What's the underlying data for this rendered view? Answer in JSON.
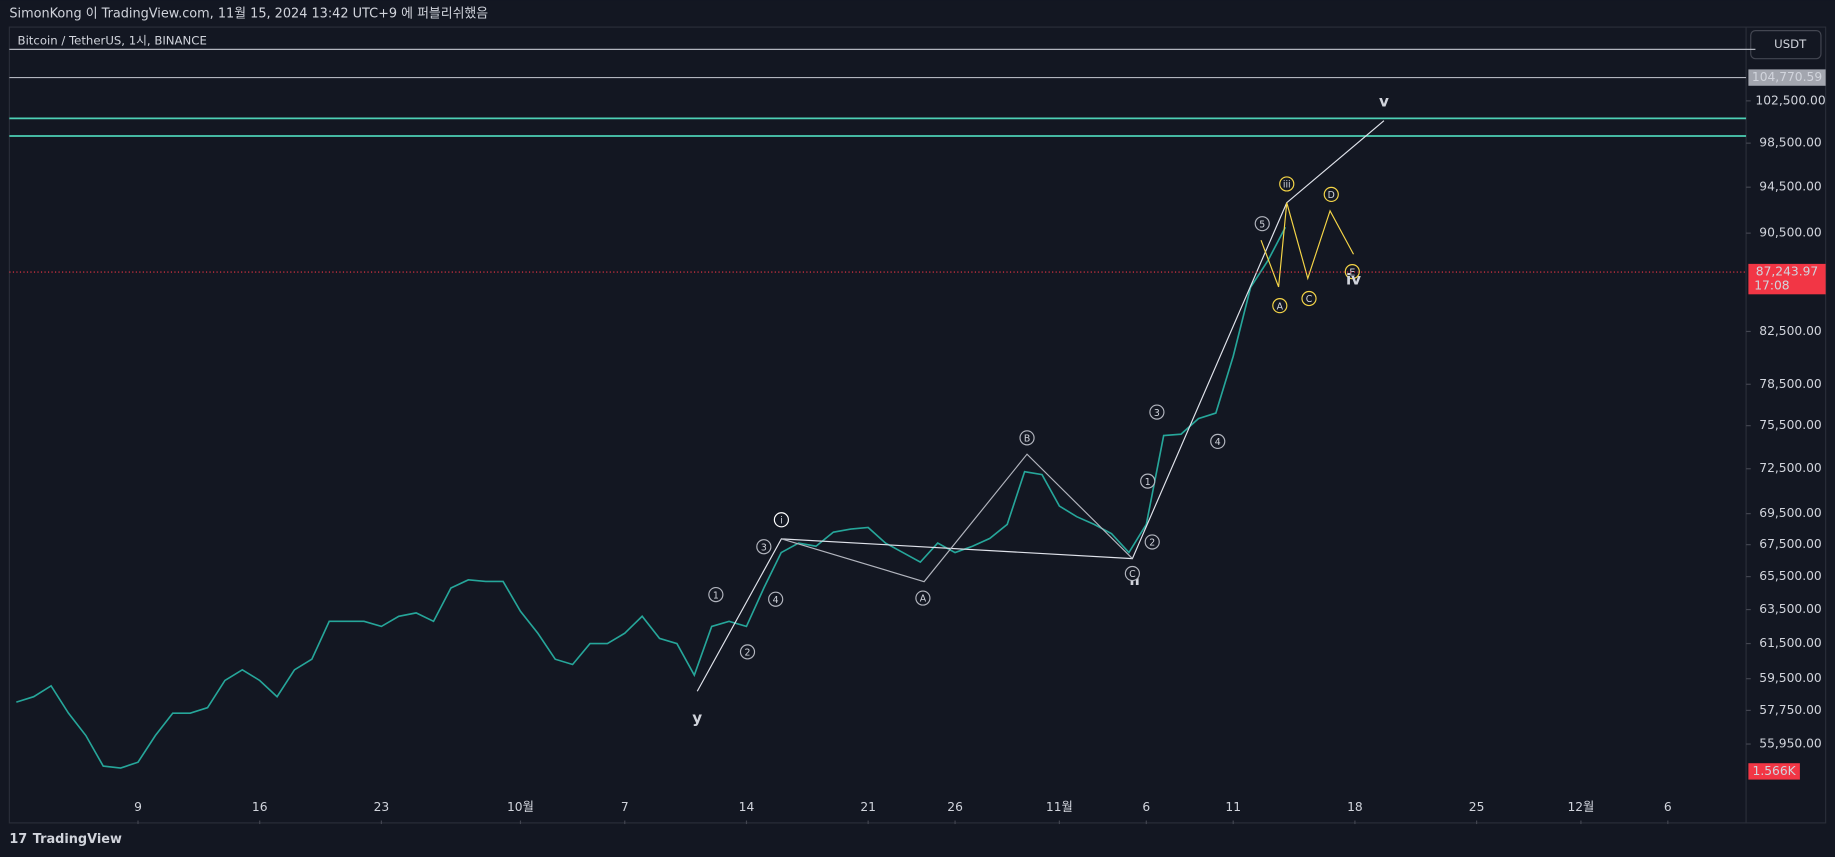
{
  "header": {
    "text": "SimonKong 이 TradingView.com, 11월 15, 2024 13:42 UTC+9 에 퍼블리쉬했음"
  },
  "footer": {
    "brand": "TradingView"
  },
  "chart_data": {
    "type": "line",
    "symbol": "Bitcoin / TetherUS, 1시, BINANCE",
    "currency": "USDT",
    "log_scale": true,
    "color": "#26a69a",
    "x": [
      2,
      3,
      4,
      5,
      6,
      7,
      8,
      9,
      10,
      11,
      12,
      13,
      14,
      15,
      16,
      17,
      18,
      19,
      20,
      21,
      22,
      23,
      24,
      25,
      26,
      27,
      28,
      29,
      30,
      31,
      32,
      33,
      34,
      35,
      36,
      37,
      38,
      39,
      40,
      41,
      42,
      43,
      44,
      45,
      46,
      47,
      48,
      49,
      50,
      51,
      52,
      53,
      54,
      55,
      56,
      57,
      58,
      59,
      60,
      61,
      62,
      63,
      64,
      65,
      66,
      67,
      68,
      69,
      70,
      71,
      72,
      73,
      74,
      75
    ],
    "values": [
      58200,
      58500,
      59100,
      57600,
      56400,
      54800,
      54700,
      55000,
      56400,
      57600,
      57600,
      57900,
      59400,
      60000,
      59400,
      58500,
      60000,
      60600,
      62800,
      62800,
      62800,
      62500,
      63100,
      63300,
      62800,
      64800,
      65300,
      65200,
      65200,
      63400,
      62100,
      60600,
      60300,
      61500,
      61500,
      62100,
      63100,
      61800,
      61500,
      59700,
      62500,
      62800,
      62500,
      64800,
      67000,
      67600,
      67400,
      68300,
      68500,
      68600,
      67600,
      67000,
      66400,
      67600,
      67000,
      67400,
      67900,
      68800,
      72300,
      72100,
      70000,
      69300,
      68800,
      68200,
      67000,
      68800,
      74800,
      74900,
      76000,
      76400,
      80600,
      86000,
      88200,
      91000
    ],
    "xlim": [
      1.6,
      101.5
    ],
    "xticks": [
      9,
      16,
      23,
      {
        "value": 31,
        "label": "10월"
      },
      {
        "value": 37,
        "label": "7"
      },
      {
        "value": 44,
        "label": "14"
      },
      {
        "value": 51,
        "label": "21"
      },
      {
        "value": 56,
        "label": "26"
      },
      {
        "value": 62,
        "label": "11월"
      },
      {
        "value": 67,
        "label": "6"
      },
      {
        "value": 72,
        "label": "11"
      },
      {
        "value": 79,
        "label": "18"
      },
      {
        "value": 86,
        "label": "25"
      },
      {
        "value": 92,
        "label": "12월"
      },
      {
        "value": 97,
        "label": "6"
      }
    ],
    "ylim": [
      52120,
      109870
    ],
    "yticks": [
      {
        "value": 102500,
        "label": "102,500.00"
      },
      {
        "value": 98500,
        "label": "98,500.00"
      },
      {
        "value": 94500,
        "label": "94,500.00"
      },
      {
        "value": 90500,
        "label": "90,500.00"
      },
      {
        "value": 82500,
        "label": "82,500.00"
      },
      {
        "value": 78500,
        "label": "78,500.00"
      },
      {
        "value": 75500,
        "label": "75,500.00"
      },
      {
        "value": 72500,
        "label": "72,500.00"
      },
      {
        "value": 69500,
        "label": "69,500.00"
      },
      {
        "value": 67500,
        "label": "67,500.00"
      },
      {
        "value": 65500,
        "label": "65,500.00"
      },
      {
        "value": 63500,
        "label": "63,500.00"
      },
      {
        "value": 61500,
        "label": "61,500.00"
      },
      {
        "value": 59500,
        "label": "59,500.00"
      },
      {
        "value": 57750,
        "label": "57,750.00"
      },
      {
        "value": 55950,
        "label": "55,950.00"
      }
    ],
    "top_line": 107590,
    "price_line": {
      "value": 104770.59,
      "label": "104,770.59"
    },
    "zone_lines": [
      100820,
      99170
    ],
    "zone_color": "#4dd0b5",
    "last_price": {
      "value": 87243.97,
      "label": "87,243.97",
      "countdown": "17:08",
      "color": "#f23645"
    },
    "volume_label": "1.566K",
    "waves": [
      {
        "color": "#e0e3eb",
        "x": [
          41.17,
          46.01,
          66.2,
          75.08,
          80.67
        ],
        "values": [
          58800,
          67870,
          66620,
          93130,
          100600
        ]
      },
      {
        "color": "#b2b5be",
        "x": [
          46.01,
          54.22,
          60.14,
          66.2
        ],
        "values": [
          67870,
          65190,
          73500,
          66620
        ]
      },
      {
        "color": "#f5d547",
        "x": [
          73.6,
          74.61,
          75.08,
          76.29,
          77.57,
          78.92
        ],
        "values": [
          89900,
          86030,
          93130,
          86730,
          92420,
          88720
        ]
      }
    ],
    "annotations": [
      {
        "text": "y",
        "x": 41.17,
        "y": 57370,
        "circled": false,
        "color": "#ffffff"
      },
      {
        "text": "i",
        "x": 46.01,
        "y": 69100,
        "circled": true,
        "color": "#ffffff"
      },
      {
        "text": "ii",
        "x": 66.33,
        "y": 65340,
        "circled": false,
        "color": "#ffffff"
      },
      {
        "text": "iii",
        "x": 75.08,
        "y": 94790,
        "circled": true,
        "color": "#f5d547"
      },
      {
        "text": "v",
        "x": 80.67,
        "y": 102500,
        "circled": false,
        "color": "#ffffff"
      },
      {
        "text": "1",
        "x": 42.24,
        "y": 64400,
        "circled": true,
        "color": "#b2b5be"
      },
      {
        "text": "2",
        "x": 44.06,
        "y": 61020,
        "circled": true,
        "color": "#b2b5be"
      },
      {
        "text": "3",
        "x": 45.0,
        "y": 67370,
        "circled": true,
        "color": "#b2b5be"
      },
      {
        "text": "4",
        "x": 45.68,
        "y": 64120,
        "circled": true,
        "color": "#b2b5be"
      },
      {
        "text": "A",
        "x": 54.15,
        "y": 64190,
        "circled": true,
        "color": "#b2b5be"
      },
      {
        "text": "B",
        "x": 60.14,
        "y": 74640,
        "circled": true,
        "color": "#b2b5be"
      },
      {
        "text": "C",
        "x": 66.2,
        "y": 65690,
        "circled": true,
        "color": "#b2b5be"
      },
      {
        "text": "1",
        "x": 67.08,
        "y": 71660,
        "circled": true,
        "color": "#b2b5be"
      },
      {
        "text": "2",
        "x": 67.34,
        "y": 67670,
        "circled": true,
        "color": "#b2b5be"
      },
      {
        "text": "3",
        "x": 67.61,
        "y": 76470,
        "circled": true,
        "color": "#b2b5be"
      },
      {
        "text": "4",
        "x": 71.11,
        "y": 74390,
        "circled": true,
        "color": "#b2b5be"
      },
      {
        "text": "5",
        "x": 73.67,
        "y": 91310,
        "circled": true,
        "color": "#b2b5be"
      },
      {
        "text": "A",
        "x": 74.68,
        "y": 84530,
        "circled": true,
        "color": "#f5d547"
      },
      {
        "text": "C",
        "x": 76.36,
        "y": 85100,
        "circled": true,
        "color": "#f5d547"
      },
      {
        "text": "D",
        "x": 77.64,
        "y": 93860,
        "circled": true,
        "color": "#f5d547"
      },
      {
        "text": "E",
        "x": 78.85,
        "y": 87280,
        "circled": true,
        "color": "#f5d547"
      },
      {
        "text": "iv",
        "x": 78.92,
        "y": 86710,
        "circled": false,
        "color": "#ffffff"
      }
    ]
  }
}
